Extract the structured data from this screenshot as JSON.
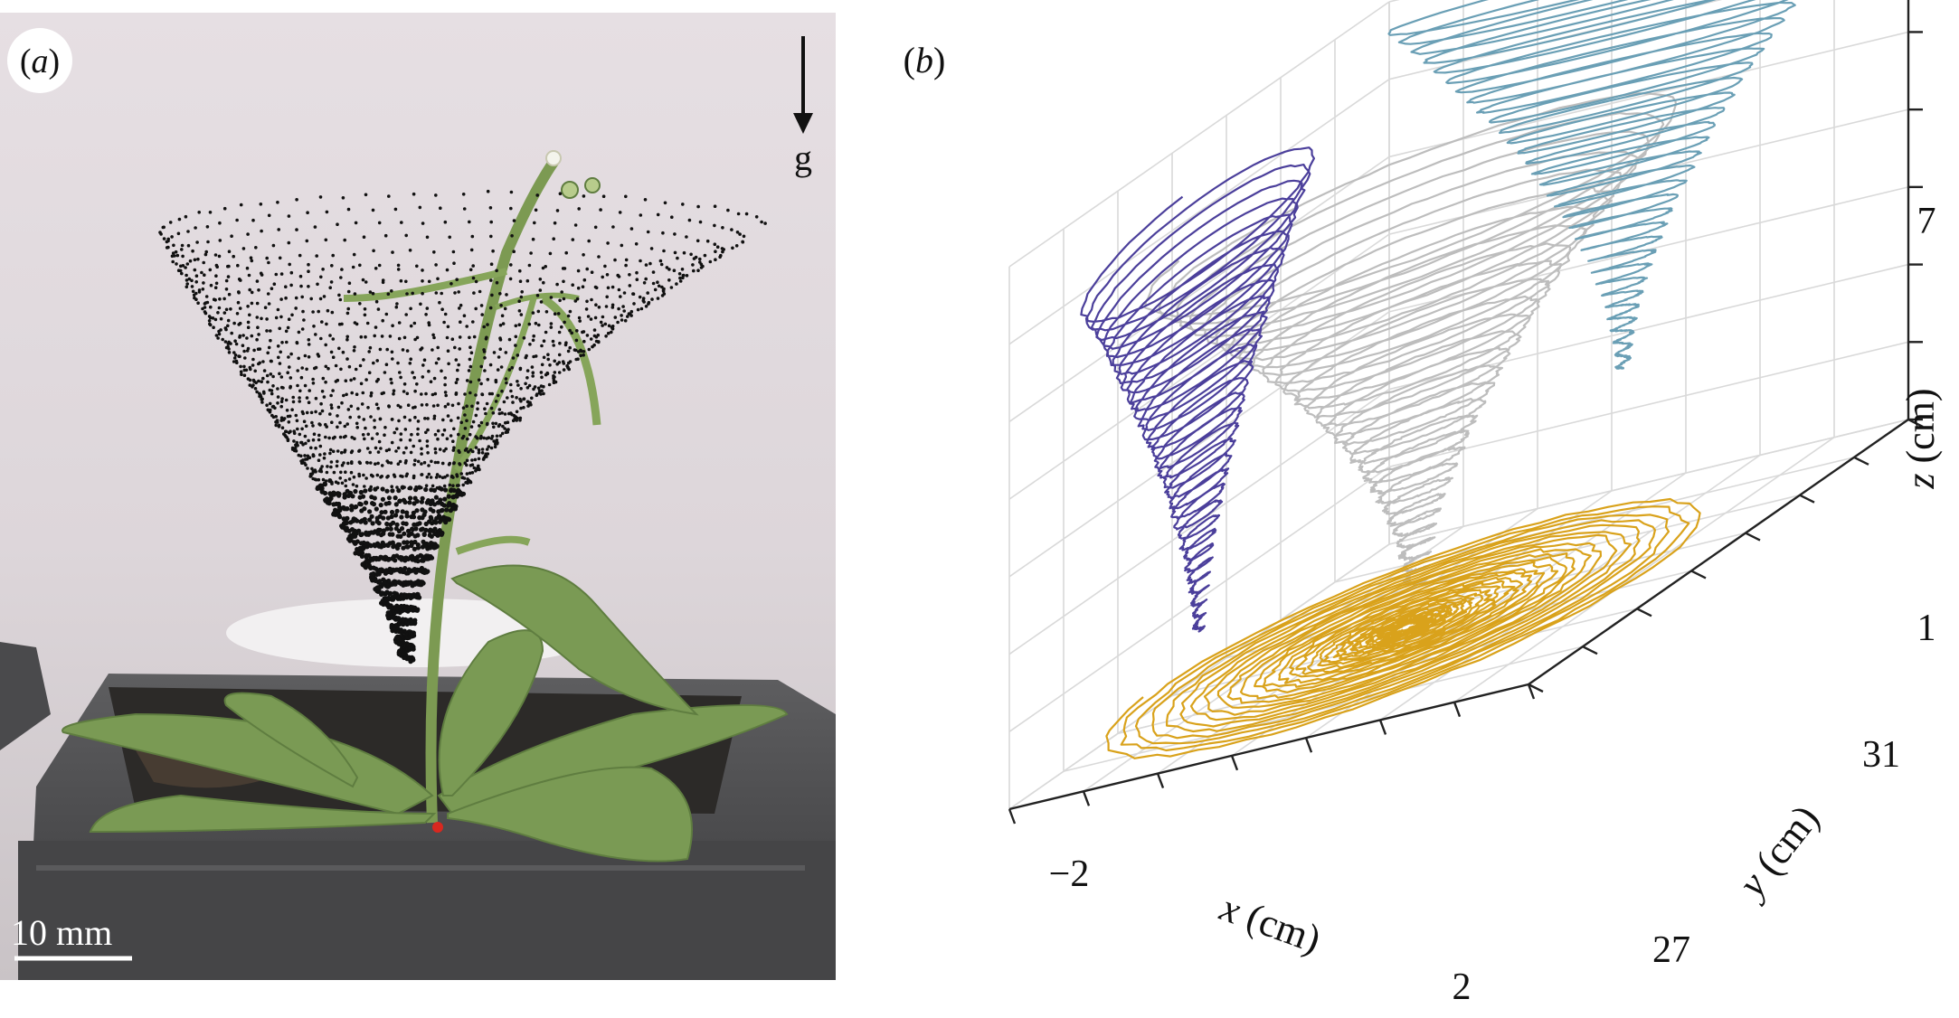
{
  "panel_a": {
    "label_open": "(",
    "label_letter": "a",
    "label_close": ")",
    "gravity_label": "g",
    "scale_bar_label": "10 mm",
    "trace_color": "#111111",
    "marker_color": "#d8281f"
  },
  "panel_b": {
    "label_open": "(",
    "label_letter": "b",
    "label_close": ")",
    "x_axis": {
      "var": "x",
      "unit": " (cm)",
      "ticks": [
        "−2",
        "2"
      ]
    },
    "y_axis": {
      "var": "y",
      "unit": " (cm)",
      "ticks": [
        "31",
        "27"
      ]
    },
    "z_axis": {
      "var": "z",
      "unit": " (cm)",
      "ticks": [
        "7",
        "1"
      ]
    },
    "series_colors": {
      "trajectory_3d": "#bdbdbd",
      "xz_projection": "#4b3f9b",
      "yz_projection": "#6a9fb5",
      "xy_projection": "#d9a21b"
    }
  }
}
